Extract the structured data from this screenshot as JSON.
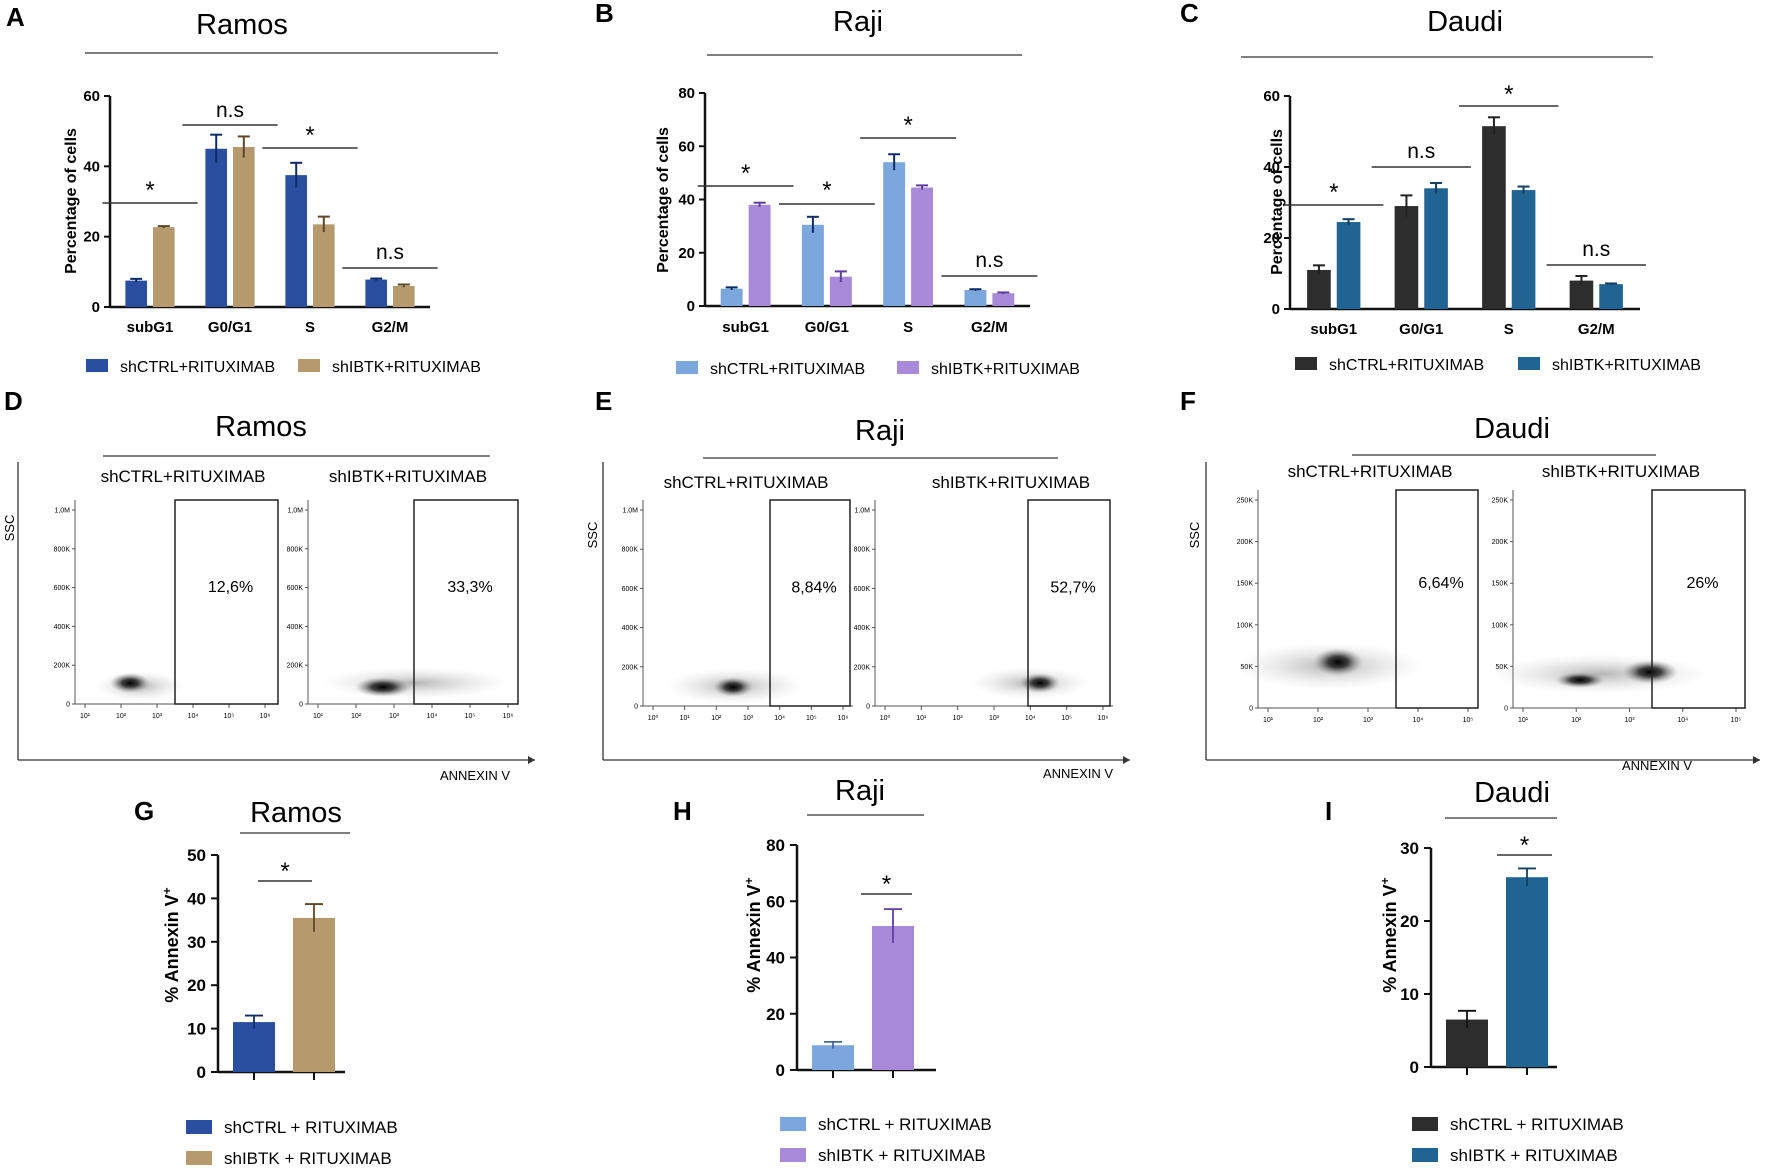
{
  "panel_labels": [
    "A",
    "B",
    "C",
    "D",
    "E",
    "F",
    "G",
    "H",
    "I"
  ],
  "colors": {
    "ramos_ctrl": "#2a4fa0",
    "ramos_ibtk": "#b69a6e",
    "raji_ctrl": "#7ba7dc",
    "raji_ibtk": "#a88ad8",
    "daudi_ctrl": "#2d2d2d",
    "daudi_ibtk": "#1f6493"
  },
  "chart_data": [
    {
      "panel": "A",
      "type": "bar",
      "title": "Ramos",
      "xlabel": "",
      "ylabel": "Percentage  of cells",
      "ylim": [
        0,
        60
      ],
      "yticks": [
        "0",
        "20",
        "40",
        "60"
      ],
      "categories": [
        "subG1",
        "G0/G1",
        "S",
        "G2/M"
      ],
      "series": [
        {
          "name": "shCTRL+RITUXIMAB",
          "values": [
            7.5,
            45.0,
            37.5,
            7.8
          ],
          "errors": [
            0.5,
            4.0,
            3.5,
            0.3
          ]
        },
        {
          "name": "shIBTK+RITUXIMAB",
          "values": [
            22.7,
            45.5,
            23.5,
            6.0
          ],
          "errors": [
            0.3,
            3.0,
            2.2,
            0.4
          ]
        }
      ],
      "significance": [
        "*",
        "n.s",
        "*",
        "n.s"
      ]
    },
    {
      "panel": "B",
      "type": "bar",
      "title": "Raji",
      "xlabel": "",
      "ylabel": "Percentage of  cells",
      "ylim": [
        0,
        80
      ],
      "yticks": [
        "0",
        "20",
        "40",
        "60",
        "80"
      ],
      "categories": [
        "subG1",
        "G0/G1",
        "S",
        "G2/M"
      ],
      "series": [
        {
          "name": "shCTRL+RITUXIMAB",
          "values": [
            6.5,
            30.5,
            54.0,
            6.0
          ],
          "errors": [
            0.5,
            3.0,
            3.0,
            0.3
          ]
        },
        {
          "name": "shIBTK+RITUXIMAB",
          "values": [
            38.0,
            11.0,
            44.5,
            4.8
          ],
          "errors": [
            0.8,
            2.0,
            0.8,
            0.3
          ]
        }
      ],
      "significance": [
        "*",
        "*",
        "*",
        "n.s"
      ]
    },
    {
      "panel": "C",
      "type": "bar",
      "title": "Daudi",
      "xlabel": "",
      "ylabel": "Percentage of cells",
      "ylim": [
        0,
        60
      ],
      "yticks": [
        "0",
        "20",
        "40",
        "60"
      ],
      "categories": [
        "subG1",
        "G0/G1",
        "S",
        "G2/M"
      ],
      "series": [
        {
          "name": "shCTRL+RITUXIMAB",
          "values": [
            11.0,
            29.0,
            51.5,
            8.0
          ],
          "errors": [
            1.3,
            3.0,
            2.5,
            1.3
          ]
        },
        {
          "name": "shIBTK+RITUXIMAB",
          "values": [
            24.5,
            34.0,
            33.5,
            7.0
          ],
          "errors": [
            0.8,
            1.5,
            1.0,
            0.2
          ]
        }
      ],
      "significance": [
        "*",
        "n.s",
        "*",
        "n.s"
      ]
    },
    {
      "panel": "G",
      "type": "bar",
      "title": "Ramos",
      "xlabel": "",
      "ylabel": "% Annexin V",
      "ylabel_sup": "+",
      "ylim": [
        0,
        50
      ],
      "yticks": [
        "0",
        "10",
        "20",
        "30",
        "40",
        "50"
      ],
      "categories": [
        "shCTRL + RITUXIMAB",
        "shIBTK + RITUXIMAB"
      ],
      "values": [
        11.5,
        35.5
      ],
      "errors": [
        1.5,
        3.2
      ],
      "significance": "*"
    },
    {
      "panel": "H",
      "type": "bar",
      "title": "Raji",
      "xlabel": "",
      "ylabel": "% Annexin V",
      "ylabel_sup": "+",
      "ylim": [
        0,
        80
      ],
      "yticks": [
        "0",
        "20",
        "40",
        "60",
        "80"
      ],
      "categories": [
        "shCTRL + RITUXIMAB",
        "shIBTK + RITUXIMAB"
      ],
      "values": [
        8.8,
        51.2
      ],
      "errors": [
        1.2,
        6.0
      ],
      "significance": "*"
    },
    {
      "panel": "I",
      "type": "bar",
      "title": "Daudi",
      "xlabel": "",
      "ylabel": "% Annexin V",
      "ylabel_sup": "+",
      "ylim": [
        0,
        30
      ],
      "yticks": [
        "0",
        "10",
        "20",
        "30"
      ],
      "categories": [
        "shCTRL + RITUXIMAB",
        "shIBTK + RITUXIMAB"
      ],
      "values": [
        6.5,
        26.0
      ],
      "errors": [
        1.2,
        1.2
      ],
      "significance": "*"
    }
  ],
  "flow": [
    {
      "panel": "D",
      "title": "Ramos",
      "y_axis": "SSC",
      "x_axis": "ANNEXIN  V",
      "yticks": [
        "0",
        "200K",
        "400K",
        "600K",
        "800K",
        "1,0M"
      ],
      "xticks": [
        "10¹",
        "10²",
        "10³",
        "10⁴",
        "10⁵",
        "10⁶"
      ],
      "plots": [
        {
          "condition": "shCTRL+RITUXIMAB",
          "gate_percent": "12,6%"
        },
        {
          "condition": "shIBTK+RITUXIMAB",
          "gate_percent": "33,3%"
        }
      ]
    },
    {
      "panel": "E",
      "title": "Raji",
      "y_axis": "SSC",
      "x_axis": "ANNEXIN  V",
      "yticks": [
        "0",
        "200K",
        "400K",
        "600K",
        "800K",
        "1.0M"
      ],
      "xticks": [
        "10⁰",
        "10¹",
        "10²",
        "10³",
        "10⁴",
        "10⁵",
        "10⁶"
      ],
      "plots": [
        {
          "condition": "shCTRL+RITUXIMAB",
          "gate_percent": "8,84%"
        },
        {
          "condition": "shIBTK+RITUXIMAB",
          "gate_percent": "52,7%"
        }
      ]
    },
    {
      "panel": "F",
      "title": "Daudi",
      "y_axis": "SSC",
      "x_axis": "ANNEXIN  V",
      "yticks": [
        "0",
        "50K",
        "100K",
        "150K",
        "200K",
        "250K"
      ],
      "xticks": [
        "10¹",
        "10²",
        "10³",
        "10⁴",
        "10⁵"
      ],
      "plots": [
        {
          "condition": "shCTRL+RITUXIMAB",
          "gate_percent": "6,64%"
        },
        {
          "condition": "shIBTK+RITUXIMAB",
          "gate_percent": "26%"
        }
      ]
    }
  ]
}
